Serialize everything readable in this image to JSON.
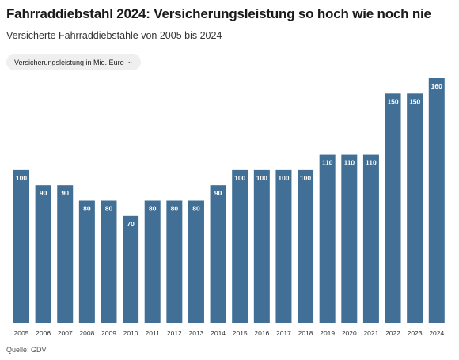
{
  "header": {
    "title": "Fahrraddiebstahl 2024: Versicherungsleistung so hoch wie noch nie",
    "subtitle": "Versicherte Fahrraddiebstähle von 2005 bis 2024"
  },
  "selector": {
    "selected_label": "Versicherungsleistung in Mio. Euro",
    "icon": "chevron-down-icon"
  },
  "footer": {
    "source": "Quelle: GDV"
  },
  "colors": {
    "bar": "#416f96",
    "label": "#ffffff",
    "axis_text": "#333333"
  },
  "chart_data": {
    "type": "bar",
    "categories": [
      "2005",
      "2006",
      "2007",
      "2008",
      "2009",
      "2010",
      "2011",
      "2012",
      "2013",
      "2014",
      "2015",
      "2016",
      "2017",
      "2018",
      "2019",
      "2020",
      "2021",
      "2022",
      "2023",
      "2024"
    ],
    "values": [
      100,
      90,
      90,
      80,
      80,
      70,
      80,
      80,
      80,
      90,
      100,
      100,
      100,
      100,
      110,
      110,
      110,
      150,
      150,
      160
    ],
    "title": "Fahrraddiebstahl 2024: Versicherungsleistung so hoch wie noch nie",
    "subtitle": "Versicherte Fahrraddiebstähle von 2005 bis 2024",
    "ylabel": "Versicherungsleistung in Mio. Euro",
    "xlabel": "",
    "ylim": [
      0,
      160
    ],
    "grid": false,
    "legend": "none",
    "data_labels": true
  }
}
